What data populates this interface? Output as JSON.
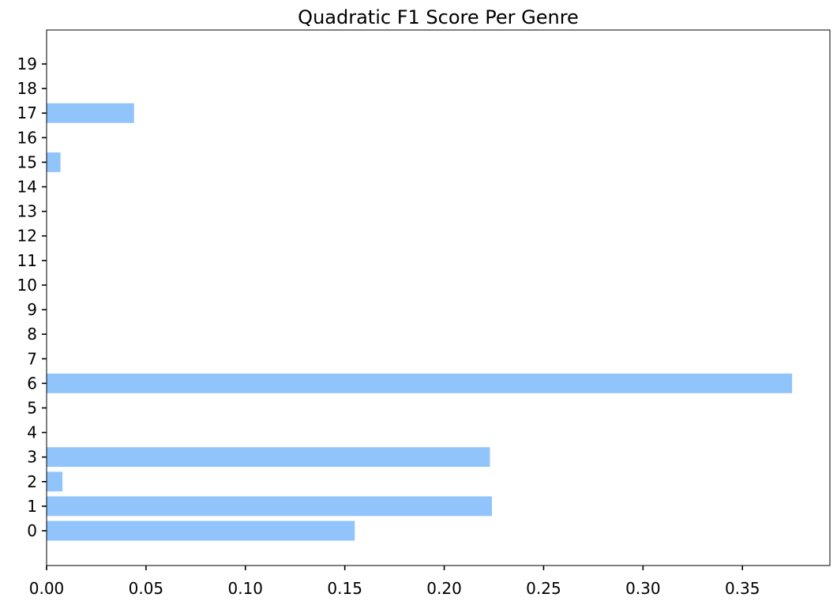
{
  "chart_data": {
    "type": "bar",
    "orientation": "horizontal",
    "title": "Quadratic F1 Score Per Genre",
    "xlabel": "",
    "ylabel": "",
    "categories": [
      "0",
      "1",
      "2",
      "3",
      "4",
      "5",
      "6",
      "7",
      "8",
      "9",
      "10",
      "11",
      "12",
      "13",
      "14",
      "15",
      "16",
      "17",
      "18",
      "19"
    ],
    "values": [
      0.155,
      0.224,
      0.008,
      0.223,
      0,
      0,
      0.375,
      0,
      0,
      0,
      0,
      0,
      0,
      0,
      0,
      0.007,
      0,
      0.044,
      0,
      0
    ],
    "xlim": [
      0,
      0.394
    ],
    "xticks": [
      0.0,
      0.05,
      0.1,
      0.15,
      0.2,
      0.25,
      0.3,
      0.35
    ],
    "xtick_labels": [
      "0.00",
      "0.05",
      "0.10",
      "0.15",
      "0.20",
      "0.25",
      "0.30",
      "0.35"
    ],
    "bar_color": "#90c4fb",
    "grid": false,
    "legend": "none"
  }
}
